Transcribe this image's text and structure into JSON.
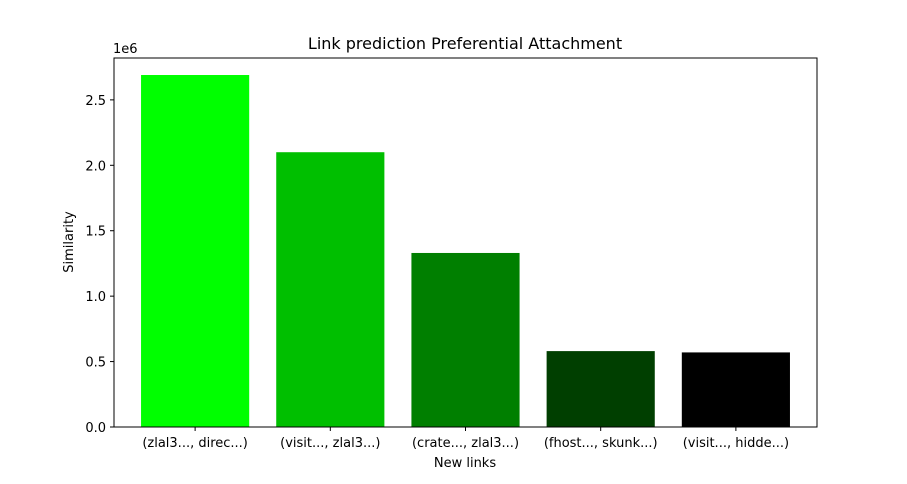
{
  "chart_data": {
    "type": "bar",
    "title": "Link prediction Preferential Attachment",
    "xlabel": "New links",
    "ylabel": "Similarity",
    "y_multiplier_label": "1e6",
    "ylim": [
      0,
      2.82
    ],
    "yticks": [
      0.0,
      0.5,
      1.0,
      1.5,
      2.0,
      2.5
    ],
    "ytick_labels": [
      "0.0",
      "0.5",
      "1.0",
      "1.5",
      "2.0",
      "2.5"
    ],
    "categories": [
      "(zlal3..., direc...)",
      "(visit..., zlal3...)",
      "(crate..., zlal3...)",
      "(fhost..., skunk...)",
      "(visit..., hidde...)"
    ],
    "values": [
      2.69,
      2.1,
      1.33,
      0.58,
      0.57
    ],
    "colors": [
      "#00ff00",
      "#00bf00",
      "#007f00",
      "#003f00",
      "#000000"
    ],
    "grid": false,
    "legend": false
  }
}
